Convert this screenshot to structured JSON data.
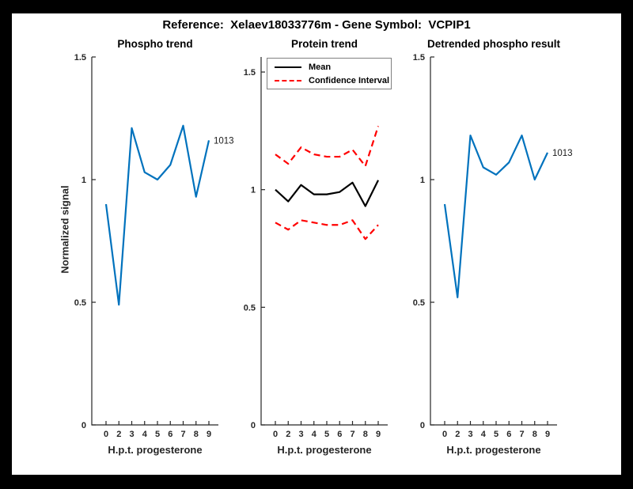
{
  "window": {
    "title": "Reference:  Xelaev18033776m - Gene Symbol:  VCPIP1"
  },
  "colors": {
    "blue": "#0072BD",
    "red": "#FF0000",
    "black": "#000000",
    "axis": "#262626",
    "figure_bg": "#FFFFFF",
    "frame_bg": "#000000"
  },
  "chart_data": [
    {
      "type": "line",
      "title": "Phospho trend",
      "xlabel": "H.p.t. progesterone",
      "ylabel": "Normalized signal",
      "x_ticklabels": [
        "0",
        "2",
        "3",
        "4",
        "5",
        "6",
        "7",
        "8",
        "9"
      ],
      "yticks": [
        0,
        0.5,
        1,
        1.5
      ],
      "ytick_labels": [
        "0",
        "0.5",
        "1",
        "1.5"
      ],
      "ylim": [
        0,
        1.5
      ],
      "grid": false,
      "legend": null,
      "end_label": "1013",
      "series": [
        {
          "name": "1013",
          "color_key": "blue",
          "style": "solid",
          "values": [
            0.9,
            0.49,
            1.21,
            1.03,
            1.0,
            1.06,
            1.22,
            0.93,
            1.16
          ]
        }
      ]
    },
    {
      "type": "line",
      "title": "Protein trend",
      "xlabel": "H.p.t. progesterone",
      "ylabel": "",
      "x_ticklabels": [
        "0",
        "2",
        "3",
        "4",
        "5",
        "6",
        "7",
        "8",
        "9"
      ],
      "yticks": [
        0,
        0.5,
        1,
        1.5
      ],
      "ytick_labels": [
        "0",
        "0.5",
        "1",
        "1.5"
      ],
      "ylim": [
        0,
        1.564
      ],
      "grid": false,
      "end_label": null,
      "legend": {
        "position": "northwest",
        "entries": [
          {
            "label": "Mean",
            "color_key": "black",
            "style": "solid"
          },
          {
            "label": "Confidence Interval",
            "color_key": "red",
            "style": "dashed"
          }
        ]
      },
      "series": [
        {
          "name": "Mean",
          "color_key": "black",
          "style": "solid",
          "values": [
            1.0,
            0.95,
            1.02,
            0.98,
            0.98,
            0.99,
            1.03,
            0.93,
            1.04
          ]
        },
        {
          "name": "Confidence Interval upper",
          "color_key": "red",
          "style": "dashed",
          "values": [
            1.15,
            1.11,
            1.18,
            1.15,
            1.14,
            1.14,
            1.17,
            1.1,
            1.27
          ]
        },
        {
          "name": "Confidence Interval lower",
          "color_key": "red",
          "style": "dashed",
          "values": [
            0.86,
            0.83,
            0.87,
            0.86,
            0.85,
            0.85,
            0.87,
            0.79,
            0.85
          ]
        }
      ]
    },
    {
      "type": "line",
      "title": "Detrended phospho result",
      "xlabel": "H.p.t. progesterone",
      "ylabel": "",
      "x_ticklabels": [
        "0",
        "2",
        "3",
        "4",
        "5",
        "6",
        "7",
        "8",
        "9"
      ],
      "yticks": [
        0,
        0.5,
        1,
        1.5
      ],
      "ytick_labels": [
        "0",
        "0.5",
        "1",
        "1.5"
      ],
      "ylim": [
        0,
        1.5
      ],
      "grid": false,
      "legend": null,
      "end_label": "1013",
      "series": [
        {
          "name": "1013",
          "color_key": "blue",
          "style": "solid",
          "values": [
            0.9,
            0.52,
            1.18,
            1.05,
            1.02,
            1.07,
            1.18,
            1.0,
            1.11
          ]
        }
      ]
    }
  ]
}
